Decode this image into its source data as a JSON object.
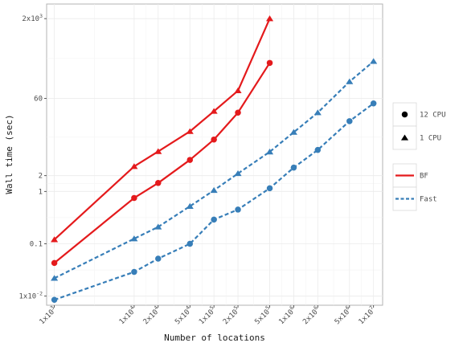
{
  "chart_data": {
    "type": "line",
    "xlabel": "Number of locations",
    "ylabel": "Wall time (sec)",
    "x_scale": "log",
    "y_scale": "log",
    "xlim": [
      800,
      13000000
    ],
    "ylim": [
      0.0067,
      3800
    ],
    "grid": true,
    "legend_position": "right",
    "x_ticks": [
      {
        "value": 1000,
        "label": "1x10^3"
      },
      {
        "value": 10000,
        "label": "1x10^4"
      },
      {
        "value": 20000,
        "label": "2x10^4"
      },
      {
        "value": 50000,
        "label": "5x10^4"
      },
      {
        "value": 100000,
        "label": "1x10^5"
      },
      {
        "value": 200000,
        "label": "2x10^5"
      },
      {
        "value": 500000,
        "label": "5x10^5"
      },
      {
        "value": 1000000,
        "label": "1x10^6"
      },
      {
        "value": 2000000,
        "label": "2x10^6"
      },
      {
        "value": 5000000,
        "label": "5x10^6"
      },
      {
        "value": 10000000,
        "label": "1x10^7"
      }
    ],
    "y_ticks": [
      {
        "value": 0.01,
        "label": "1x10^-2"
      },
      {
        "value": 0.1,
        "label": "0.1"
      },
      {
        "value": 1,
        "label": "1"
      },
      {
        "value": 2,
        "label": "2"
      },
      {
        "value": 60,
        "label": "60"
      },
      {
        "value": 2000,
        "label": "2x10^3"
      }
    ],
    "series": [
      {
        "method": "BF",
        "cpu": "1 CPU",
        "color": "#e41a1c",
        "line": "solid",
        "marker": "triangle",
        "points": [
          [
            1000,
            0.12
          ],
          [
            10000,
            3.0
          ],
          [
            20000,
            5.8
          ],
          [
            50000,
            14
          ],
          [
            100000,
            34
          ],
          [
            200000,
            84
          ],
          [
            500000,
            2000
          ]
        ]
      },
      {
        "method": "BF",
        "cpu": "12 CPU",
        "color": "#e41a1c",
        "line": "solid",
        "marker": "circle",
        "points": [
          [
            1000,
            0.043
          ],
          [
            10000,
            0.75
          ],
          [
            20000,
            1.45
          ],
          [
            50000,
            4.0
          ],
          [
            100000,
            9.8
          ],
          [
            200000,
            32
          ],
          [
            500000,
            285
          ]
        ]
      },
      {
        "method": "Fast",
        "cpu": "1 CPU",
        "color": "#377eb8",
        "line": "dashed",
        "marker": "triangle",
        "points": [
          [
            1000,
            0.022
          ],
          [
            10000,
            0.125
          ],
          [
            20000,
            0.21
          ],
          [
            50000,
            0.52
          ],
          [
            100000,
            1.05
          ],
          [
            200000,
            2.2
          ],
          [
            500000,
            5.7
          ],
          [
            1000000,
            13.5
          ],
          [
            2000000,
            32
          ],
          [
            5000000,
            125
          ],
          [
            10000000,
            305
          ]
        ]
      },
      {
        "method": "Fast",
        "cpu": "12 CPU",
        "color": "#377eb8",
        "line": "dashed",
        "marker": "circle",
        "points": [
          [
            1000,
            0.0085
          ],
          [
            10000,
            0.029
          ],
          [
            20000,
            0.052
          ],
          [
            50000,
            0.1
          ],
          [
            100000,
            0.29
          ],
          [
            200000,
            0.45
          ],
          [
            500000,
            1.15
          ],
          [
            1000000,
            2.85
          ],
          [
            2000000,
            6.2
          ],
          [
            5000000,
            22
          ],
          [
            10000000,
            48
          ]
        ]
      }
    ],
    "legends": [
      {
        "type": "shape",
        "items": [
          {
            "label": "12 CPU",
            "marker": "circle"
          },
          {
            "label": "1 CPU",
            "marker": "triangle"
          }
        ]
      },
      {
        "type": "line",
        "items": [
          {
            "label": "BF",
            "color": "#e41a1c",
            "line": "solid"
          },
          {
            "label": "Fast",
            "color": "#377eb8",
            "line": "dashed"
          }
        ]
      }
    ]
  }
}
